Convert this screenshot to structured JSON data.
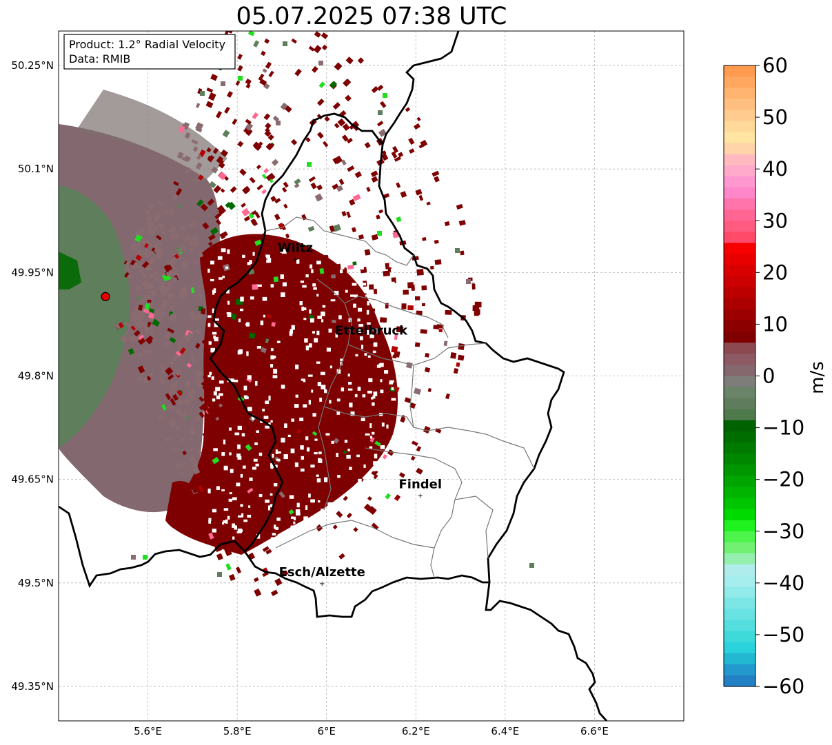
{
  "title": "05.07.2025 07:38 UTC",
  "info_box": {
    "product": "Product: 1.2° Radial Velocity",
    "data": "Data: RMIB"
  },
  "map": {
    "lon_ticks": [
      "5.6°E",
      "5.8°E",
      "6°E",
      "6.2°E",
      "6.4°E",
      "6.6°E"
    ],
    "lat_ticks": [
      "50.25°N",
      "50.1°N",
      "49.95°N",
      "49.8°N",
      "49.65°N",
      "49.5°N",
      "49.35°N"
    ],
    "lon_values": [
      5.6,
      5.8,
      6.0,
      6.2,
      6.4,
      6.6
    ],
    "lat_values": [
      50.25,
      50.1,
      49.95,
      49.8,
      49.65,
      49.5,
      49.35
    ],
    "extent": {
      "lon": [
        5.4,
        6.8
      ],
      "lat": [
        49.3,
        50.3
      ]
    },
    "gridlines": true,
    "radar_site": {
      "lon": 5.505,
      "lat": 49.915,
      "color": "#e00000"
    },
    "cities": [
      {
        "name": "Wiltz",
        "lon": 5.93,
        "lat": 49.97
      },
      {
        "name": "Ettelbruck",
        "lon": 6.1,
        "lat": 49.85
      },
      {
        "name": "Findel",
        "lon": 6.21,
        "lat": 49.627
      },
      {
        "name": "Esch/Alzette",
        "lon": 5.99,
        "lat": 49.5
      }
    ]
  },
  "colorbar": {
    "label": "m/s",
    "ticks": [
      "60",
      "50",
      "40",
      "30",
      "20",
      "10",
      "0",
      "−10",
      "−20",
      "−30",
      "−40",
      "−50",
      "−60"
    ],
    "range": [
      -60,
      60
    ],
    "segments": [
      "#ff9a4f",
      "#ffa75e",
      "#ffb46f",
      "#ffbf80",
      "#ffcb8e",
      "#ffd99a",
      "#ffe5a1",
      "#ffd4a8",
      "#ffbac0",
      "#ffaacb",
      "#ff97d0",
      "#ff86c8",
      "#ff75ab",
      "#ff6694",
      "#ff5a80",
      "#ff4a6a",
      "#f60000",
      "#e80000",
      "#d80000",
      "#cc0000",
      "#bc0000",
      "#ac0000",
      "#9c0000",
      "#8c0000",
      "#800000",
      "#8c4a50",
      "#8d5a64",
      "#85676e",
      "#7e7d7a",
      "#6a8469",
      "#5f7d5c",
      "#4f7a4c",
      "#006200",
      "#006d00",
      "#007a00",
      "#008700",
      "#009600",
      "#00a500",
      "#00b400",
      "#00c500",
      "#00da00",
      "#1ff21f",
      "#4cf44c",
      "#71f071",
      "#95f0b0",
      "#b0ecec",
      "#a6eeee",
      "#92eaea",
      "#7ce6e6",
      "#68e2e2",
      "#54dede",
      "#3edada",
      "#2ad2dc",
      "#22b8d2",
      "#2298cc",
      "#2280c4"
    ]
  }
}
